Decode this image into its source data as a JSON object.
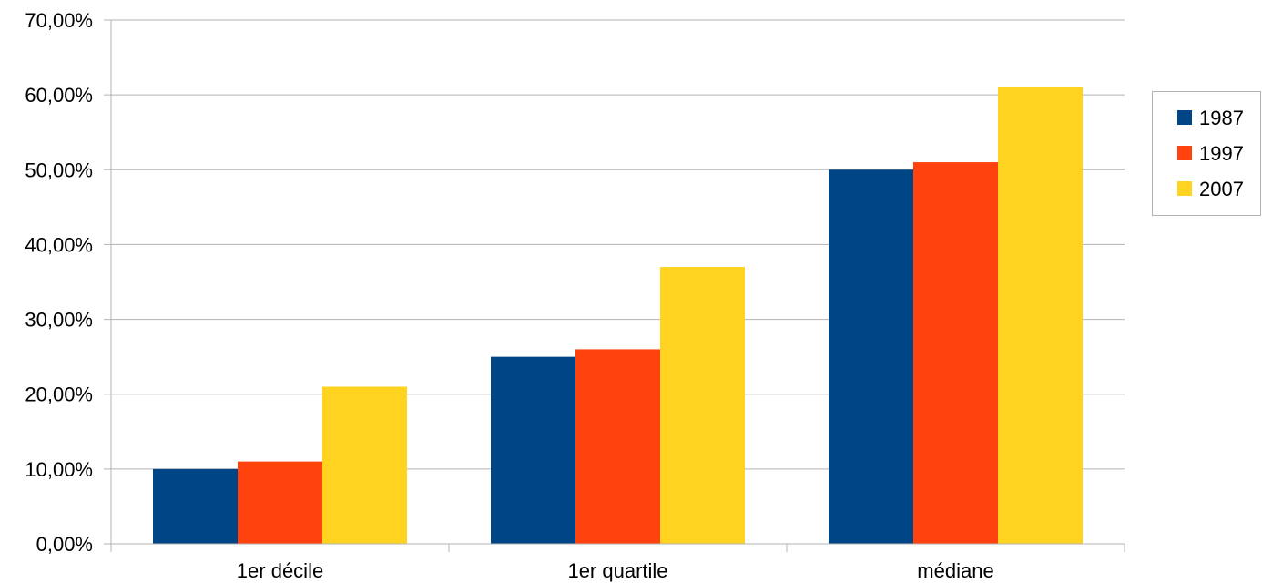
{
  "chart_data": {
    "type": "bar",
    "categories": [
      "1er décile",
      "1er quartile",
      "médiane"
    ],
    "series": [
      {
        "name": "1987",
        "color": "#004586",
        "values": [
          10,
          25,
          50
        ]
      },
      {
        "name": "1997",
        "color": "#FF420E",
        "values": [
          11,
          26,
          51
        ]
      },
      {
        "name": "2007",
        "color": "#FFD320",
        "values": [
          21,
          37,
          61
        ]
      }
    ],
    "ylim": [
      0,
      70
    ],
    "y_ticks": [
      {
        "value": 0,
        "label": "0,00%"
      },
      {
        "value": 10,
        "label": "10,00%"
      },
      {
        "value": 20,
        "label": "20,00%"
      },
      {
        "value": 30,
        "label": "30,00%"
      },
      {
        "value": 40,
        "label": "40,00%"
      },
      {
        "value": 50,
        "label": "50,00%"
      },
      {
        "value": 60,
        "label": "60,00%"
      },
      {
        "value": 70,
        "label": "70,00%"
      }
    ],
    "grid": true,
    "legend_position": "right",
    "gridline_color": "#b3b3b3",
    "axis_color": "#b3b3b3"
  }
}
